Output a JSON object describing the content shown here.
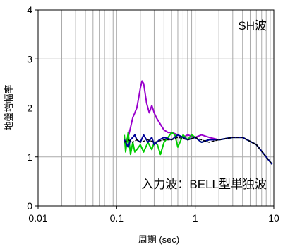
{
  "chart_data": {
    "type": "line",
    "x_scale": "log",
    "xlim": [
      0.01,
      10
    ],
    "ylim": [
      0,
      4
    ],
    "xlabel": "周期 (sec)",
    "ylabel": "地盤増幅率",
    "x_tick_values": [
      0.01,
      0.1,
      1,
      10
    ],
    "x_tick_labels": [
      "0.01",
      "0.1",
      "1",
      "10"
    ],
    "y_tick_values": [
      0,
      1,
      2,
      3,
      4
    ],
    "y_tick_labels": [
      "0",
      "1",
      "2",
      "3",
      "4"
    ],
    "grid": true,
    "annotations": {
      "top_right": "SH波",
      "bottom_right": "入力波：BELL型単独波"
    },
    "series": [
      {
        "color": "#9900cc",
        "x": [
          0.125,
          0.14,
          0.15,
          0.16,
          0.17,
          0.18,
          0.19,
          0.2,
          0.21,
          0.22,
          0.23,
          0.24,
          0.26,
          0.28,
          0.3,
          0.32,
          0.35,
          0.4,
          0.45,
          0.5,
          0.6,
          0.7,
          0.8,
          1.0,
          1.2,
          1.5,
          2.0,
          3.0,
          4.0,
          6.0,
          9.5
        ],
        "y": [
          1.3,
          1.4,
          1.6,
          1.8,
          1.9,
          2.0,
          2.2,
          2.4,
          2.55,
          2.5,
          2.3,
          2.1,
          1.9,
          2.05,
          1.9,
          1.8,
          1.7,
          1.55,
          1.5,
          1.5,
          1.45,
          1.4,
          1.45,
          1.4,
          1.45,
          1.4,
          1.35,
          1.4,
          1.4,
          1.25,
          0.85
        ]
      },
      {
        "color": "#00cc00",
        "x": [
          0.125,
          0.13,
          0.14,
          0.15,
          0.16,
          0.17,
          0.18,
          0.2,
          0.22,
          0.25,
          0.28,
          0.3,
          0.33,
          0.36,
          0.4,
          0.45,
          0.5,
          0.55,
          0.6,
          0.7,
          0.8,
          0.9,
          1.0,
          1.2,
          1.5,
          2.0,
          3.0,
          4.0,
          6.0,
          9.5
        ],
        "y": [
          1.45,
          1.1,
          1.5,
          1.05,
          1.3,
          1.1,
          1.15,
          1.25,
          1.1,
          1.3,
          1.15,
          1.3,
          1.25,
          1.05,
          1.3,
          1.4,
          1.5,
          1.45,
          1.2,
          1.45,
          1.35,
          1.45,
          1.4,
          1.3,
          1.35,
          1.35,
          1.4,
          1.4,
          1.25,
          0.85
        ]
      },
      {
        "color": "#000099",
        "x": [
          0.125,
          0.13,
          0.14,
          0.15,
          0.16,
          0.17,
          0.18,
          0.2,
          0.22,
          0.25,
          0.28,
          0.3,
          0.35,
          0.4,
          0.5,
          0.6,
          0.7,
          0.8,
          1.0,
          1.2,
          1.5,
          2.0,
          3.0,
          4.0,
          6.0,
          9.5
        ],
        "y": [
          1.35,
          1.3,
          1.2,
          1.35,
          1.4,
          1.45,
          1.35,
          1.3,
          1.45,
          1.3,
          1.4,
          1.25,
          1.35,
          1.4,
          1.35,
          1.45,
          1.4,
          1.35,
          1.4,
          1.3,
          1.35,
          1.35,
          1.4,
          1.4,
          1.25,
          0.85
        ]
      },
      {
        "color": "#000000",
        "x": [
          0.125,
          0.14,
          0.16,
          0.18,
          0.2,
          0.25,
          0.3,
          0.4,
          0.5,
          0.6,
          0.8,
          1.0,
          1.2,
          1.5,
          2.0,
          3.0,
          4.0,
          6.0,
          9.5
        ],
        "y": [
          1.3,
          1.35,
          1.3,
          1.35,
          1.3,
          1.35,
          1.3,
          1.35,
          1.35,
          1.4,
          1.35,
          1.4,
          1.35,
          1.3,
          1.35,
          1.4,
          1.4,
          1.25,
          0.85
        ]
      }
    ]
  }
}
